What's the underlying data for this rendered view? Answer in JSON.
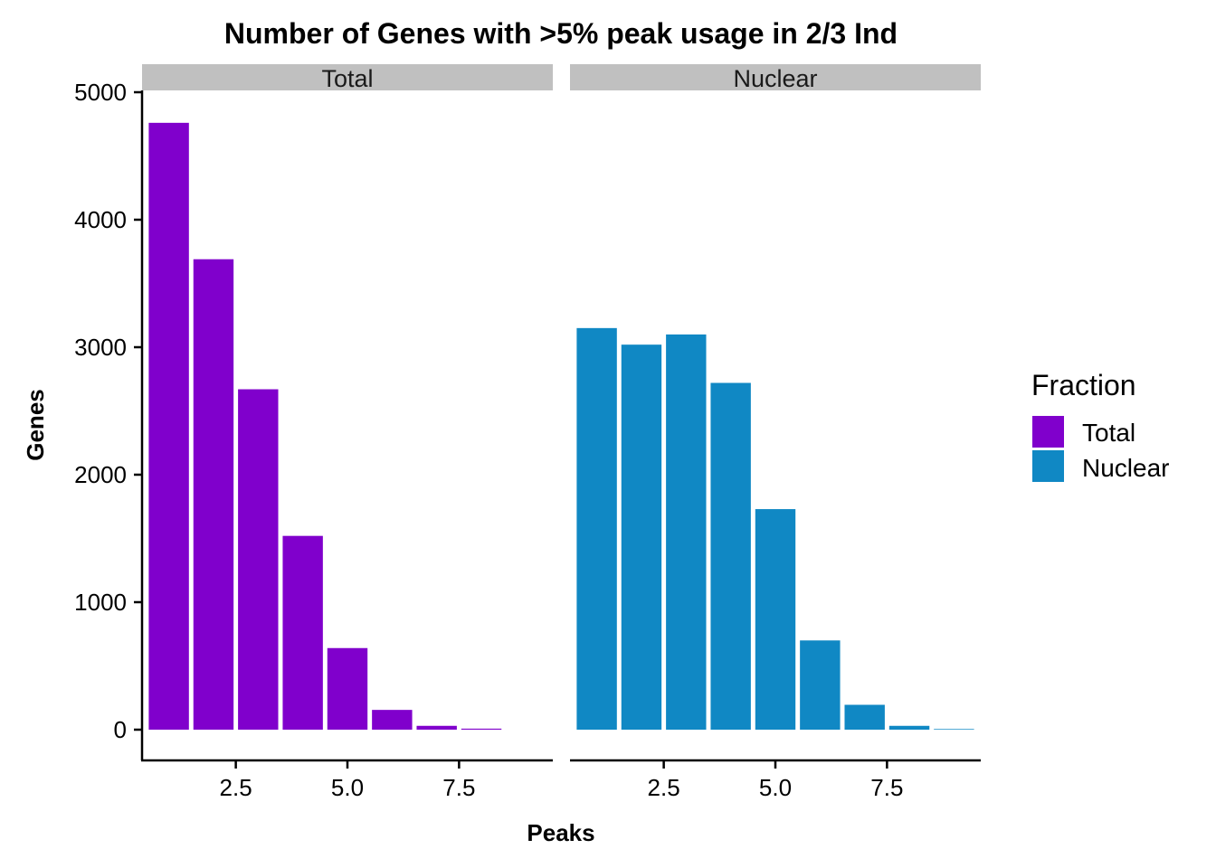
{
  "chart_data": {
    "type": "bar",
    "title": "Number of Genes with >5% peak usage in 2/3 Ind",
    "xlabel": "Peaks",
    "ylabel": "Genes",
    "ylim": [
      0,
      5000
    ],
    "xlim": [
      0.4,
      9.6
    ],
    "yticks": [
      0,
      1000,
      2000,
      3000,
      4000,
      5000
    ],
    "xticks": [
      "2.5",
      "5.0",
      "7.5"
    ],
    "xtick_values": [
      2.5,
      5.0,
      7.5
    ],
    "grid": false,
    "legend": {
      "title": "Fraction",
      "position": "right",
      "entries": [
        "Total",
        "Nuclear"
      ]
    },
    "x": [
      1,
      2,
      3,
      4,
      5,
      6,
      7,
      8,
      9
    ],
    "panels": [
      {
        "strip": "Total",
        "color": "#8000cc",
        "values": [
          4760,
          3690,
          2670,
          1520,
          640,
          155,
          30,
          8,
          0
        ]
      },
      {
        "strip": "Nuclear",
        "color": "#1088c4",
        "values": [
          3150,
          3020,
          3100,
          2720,
          1730,
          700,
          195,
          30,
          5
        ]
      }
    ]
  }
}
